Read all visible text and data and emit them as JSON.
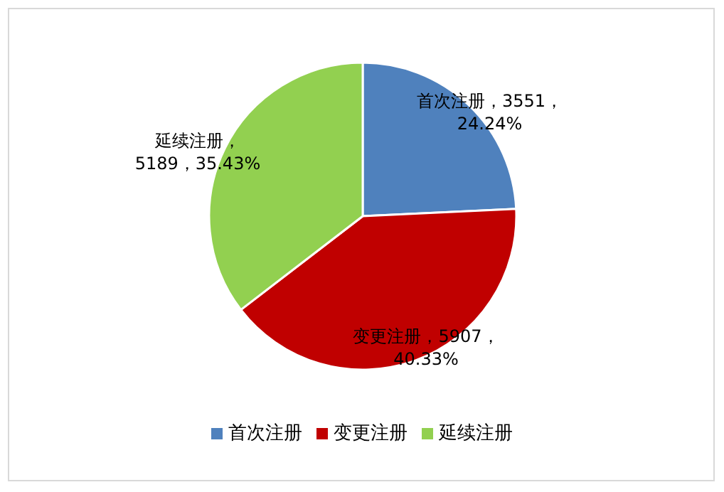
{
  "chart_data": {
    "type": "pie",
    "categories": [
      "首次注册",
      "变更注册",
      "延续注册"
    ],
    "values": [
      3551,
      5907,
      5189
    ],
    "colors": [
      "#4f81bd",
      "#c00000",
      "#92d050"
    ],
    "value_labels": [
      "首次注册，3551，\n24.24%",
      "变更注册，5907，\n40.33%",
      "延续注册，\n5189，35.43%"
    ],
    "legend": "bottom"
  }
}
